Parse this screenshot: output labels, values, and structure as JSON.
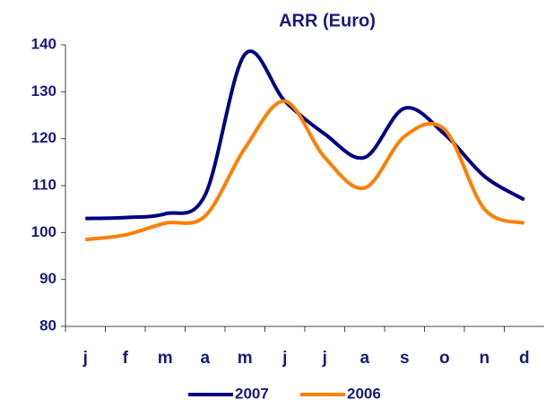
{
  "chart_data": {
    "type": "line",
    "title": "ARR (Euro)",
    "categories": [
      "j",
      "f",
      "m",
      "a",
      "m",
      "j",
      "j",
      "a",
      "s",
      "o",
      "n",
      "d"
    ],
    "series": [
      {
        "name": "2007",
        "color": "#000080",
        "values": [
          103,
          103.2,
          104,
          108,
          138,
          128,
          121,
          116,
          126.5,
          121,
          112,
          107
        ]
      },
      {
        "name": "2006",
        "color": "#ff7f00",
        "values": [
          98.5,
          99.5,
          102,
          103.5,
          118,
          128,
          116,
          109.5,
          120.5,
          122,
          105,
          102
        ]
      }
    ],
    "ylim": [
      80,
      140
    ],
    "yticks": [
      80,
      90,
      100,
      110,
      120,
      130,
      140
    ],
    "legend": "bottom"
  }
}
